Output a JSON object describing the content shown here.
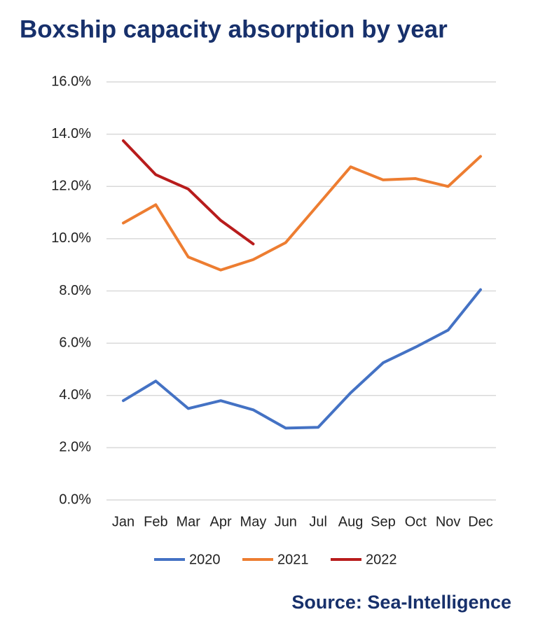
{
  "chart_data": {
    "type": "line",
    "title": "Boxship capacity absorption by year",
    "source": "Source: Sea-Intelligence",
    "categories": [
      "Jan",
      "Feb",
      "Mar",
      "Apr",
      "May",
      "Jun",
      "Jul",
      "Aug",
      "Sep",
      "Oct",
      "Nov",
      "Dec"
    ],
    "series": [
      {
        "name": "2020",
        "color": "#4472c4",
        "values": [
          3.8,
          4.55,
          3.5,
          3.8,
          3.45,
          2.75,
          2.78,
          4.1,
          5.25,
          5.85,
          6.5,
          8.05
        ]
      },
      {
        "name": "2021",
        "color": "#ed7d31",
        "values": [
          10.6,
          11.3,
          9.3,
          8.8,
          9.2,
          9.85,
          11.3,
          12.75,
          12.25,
          12.3,
          12.0,
          13.15
        ]
      },
      {
        "name": "2022",
        "color": "#b81c1c",
        "values": [
          13.75,
          12.45,
          11.9,
          10.7,
          9.8,
          null,
          null,
          null,
          null,
          null,
          null,
          null
        ]
      }
    ],
    "ylim": [
      0,
      16
    ],
    "yticks": [
      {
        "value": 0,
        "label": "0.0%"
      },
      {
        "value": 2,
        "label": "2.0%"
      },
      {
        "value": 4,
        "label": "4.0%"
      },
      {
        "value": 6,
        "label": "6.0%"
      },
      {
        "value": 8,
        "label": "8.0%"
      },
      {
        "value": 10,
        "label": "10.0%"
      },
      {
        "value": 12,
        "label": "12.0%"
      },
      {
        "value": 14,
        "label": "14.0%"
      },
      {
        "value": 16,
        "label": "16.0%"
      }
    ],
    "grid": true,
    "legend": "bottom"
  }
}
